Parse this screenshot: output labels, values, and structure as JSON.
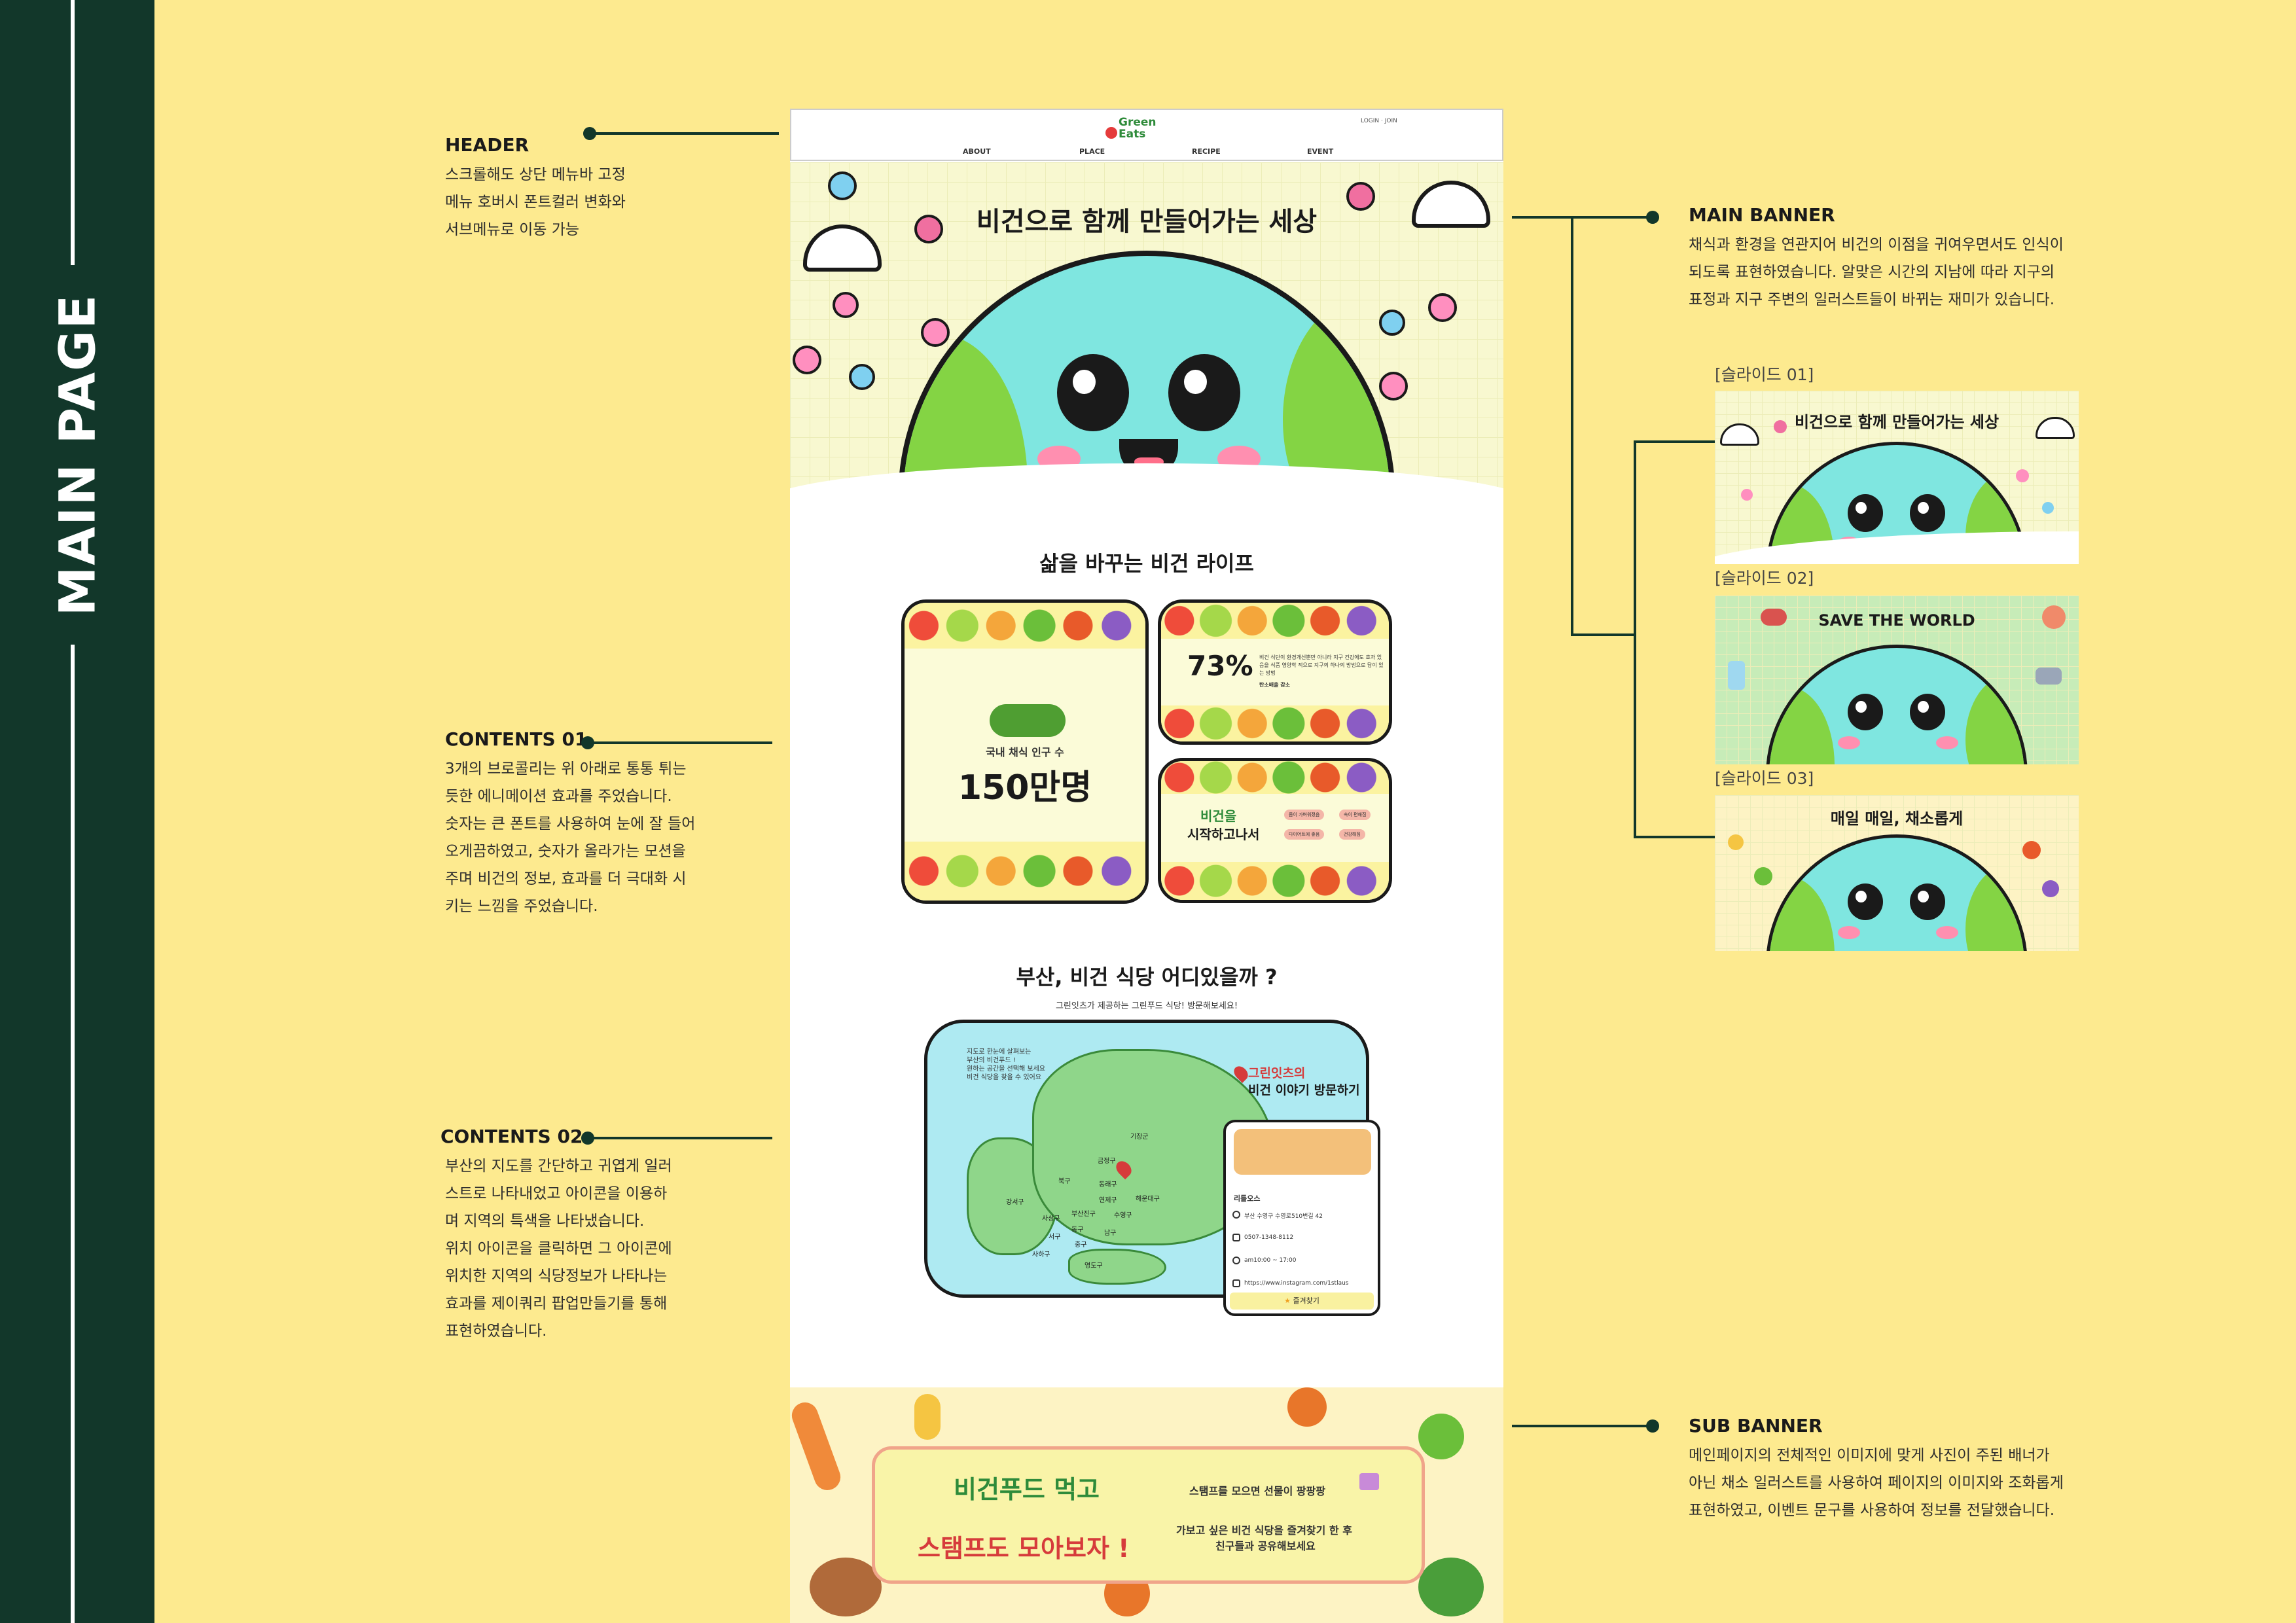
{
  "sidebar": {
    "title": "MAIN PAGE"
  },
  "annotations": {
    "header": {
      "title": "HEADER",
      "lines": [
        "스크롤해도 상단 메뉴바 고정",
        "메뉴 호버시 폰트컬러 변화와",
        "서브메뉴로 이동 가능"
      ]
    },
    "contents01": {
      "title": "CONTENTS 01",
      "lines": [
        "3개의 브로콜리는 위 아래로 통통 튀는",
        "듯한 에니메이션 효과를 주었습니다.",
        "숫자는 큰 폰트를 사용하여 눈에 잘 들어",
        "오게끔하였고, 숫자가 올라가는 모션을",
        "주며 비건의 정보, 효과를 더 극대화 시",
        "키는 느낌을 주었습니다."
      ]
    },
    "contents02": {
      "title": "CONTENTS 02",
      "lines": [
        "부산의 지도를 간단하고 귀엽게 일러",
        "스트로 나타내었고 아이콘을 이용하",
        "며 지역의 특색을 나타냈습니다.",
        "위치 아이콘을 클릭하면 그 아이콘에",
        "위치한 지역의 식당정보가 나타나는",
        "효과를 제이쿼리 팝업만들기를 통해",
        "표현하였습니다."
      ]
    },
    "main_banner": {
      "title": "MAIN BANNER",
      "lines": [
        "채식과 환경을 연관지어 비건의 이점을 귀여우면서도 인식이",
        "되도록 표현하였습니다. 알맞은 시간의 지남에 따라 지구의",
        "표정과 지구 주변의 일러스트들이 바뀌는 재미가 있습니다."
      ]
    },
    "sub_banner": {
      "title": "SUB BANNER",
      "lines": [
        "메인페이지의 전체적인 이미지에 맞게 사진이 주된 배너가",
        "아닌 채소 일러스트를 사용하여 페이지의 이미지와 조화롭게",
        "표현하였고, 이벤트 문구를 사용하여 정보를 전달했습니다."
      ]
    }
  },
  "slides": [
    {
      "label": "[슬라이드 01]",
      "title": "비건으로 함께 만들어가는 세상"
    },
    {
      "label": "[슬라이드 02]",
      "title": "SAVE THE WORLD"
    },
    {
      "label": "[슬라이드 03]",
      "title": "매일 매일, 채소롭게"
    }
  ],
  "mockup": {
    "logo": "Green Eats",
    "login": "LOGIN · JOIN",
    "nav": [
      "ABOUT",
      "PLACE",
      "RECIPE",
      "EVENT"
    ],
    "banner_title": "비건으로 함께 만들어가는 세상",
    "section1_title": "삶을 바꾸는 비건 라이프",
    "card1": {
      "label": "국내 채식 인구 수",
      "value": "150만명"
    },
    "card2": {
      "value": "73%",
      "text": "비건 식단이 환경개선뿐만 아니라 지구 건강에도 효과 있음을 식품 영양학 적으로 지구의 하나의 방법으로 답이 있는 방법",
      "sub": "탄소배출 감소"
    },
    "card3": {
      "title_a": "비건을",
      "title_b": "시작하고나서",
      "chips": [
        "몸이 가벼워졌음",
        "속이 편해짐",
        "다이어트에 좋음",
        "건강해짐"
      ]
    },
    "section2_title": "부산, 비건 식당 어디있을까 ?",
    "section2_sub": "그린잇츠가 제공하는 그린푸드 식당! 방문해보세요!",
    "map_intro": [
      "지도로 한눈에 살펴보는",
      "부산의 비건푸드 !",
      "원하는 공간을 선택해 보세요",
      "비건 식당을 찾을 수 있어요"
    ],
    "map_callout": [
      "그린잇츠의",
      "비건 이야기 방문하기"
    ],
    "districts": [
      "기장군",
      "금정구",
      "북구",
      "동래구",
      "연제구",
      "해운대구",
      "강서구",
      "사상구",
      "부산진구",
      "수영구",
      "서구",
      "동구",
      "남구",
      "중구",
      "사하구",
      "영도구"
    ],
    "popup": {
      "name": "리틀오스",
      "address": "부산 수영구 수영로510번길 42",
      "phone": "0507-1348-8112",
      "hours": "am10:00 ~ 17:00",
      "insta": "https://www.instagram.com/1stlaus",
      "button": "즐겨찾기"
    },
    "sub_banner": {
      "line1": "비건푸드 먹고",
      "line2": "스탬프도 모아보자 !",
      "r1": "스탬프를 모으면 선물이 팡팡팡",
      "r2": "가보고 싶은 비건 식당을 즐겨찾기 한 후",
      "r3": "친구들과 공유해보세요"
    }
  },
  "colors": {
    "bg": "#fdea8f",
    "sidebar": "#12372a",
    "earth": "#7fe6e0",
    "land": "#84d444",
    "accent_red": "#e53b3b",
    "accent_green": "#2e8b3a"
  }
}
